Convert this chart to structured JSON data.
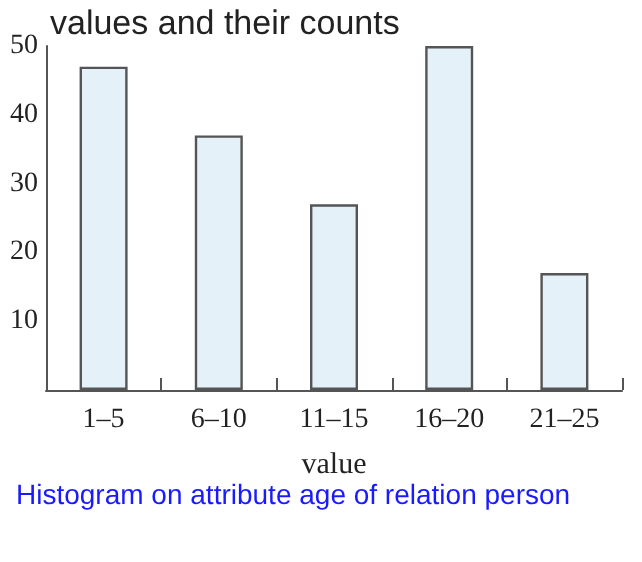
{
  "chart_data": {
    "type": "bar",
    "title": "values and their counts",
    "xlabel": "value",
    "categories": [
      "1–5",
      "6–10",
      "11–15",
      "16–20",
      "21–25"
    ],
    "values": [
      47,
      37,
      27,
      50,
      17
    ],
    "color": "#e4f1f8",
    "ylim": [
      0,
      50
    ],
    "yticks": [
      10,
      20,
      30,
      40,
      50
    ],
    "grid": false,
    "annotations": [
      "Histogram on attribute age of relation person"
    ]
  }
}
